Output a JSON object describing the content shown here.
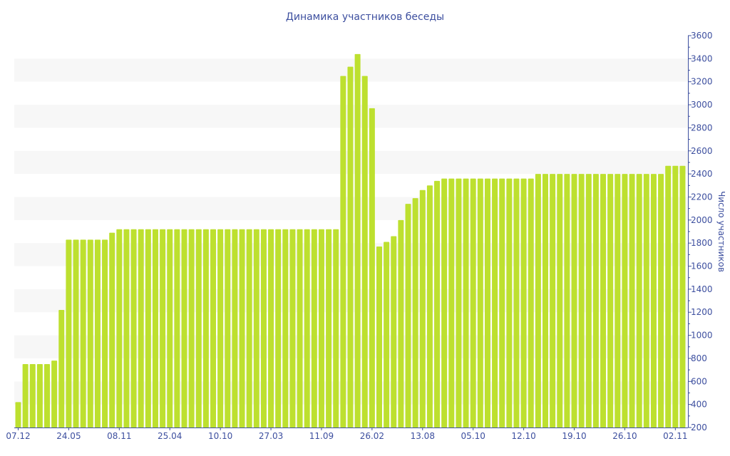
{
  "chart_data": {
    "type": "bar",
    "title": "Динамика участников беседы",
    "xlabel": "",
    "ylabel": "Число участников",
    "ylim": [
      200,
      3600
    ],
    "y_ticks": [
      200,
      400,
      600,
      800,
      1000,
      1200,
      1400,
      1600,
      1800,
      2000,
      2200,
      2400,
      2600,
      2800,
      3000,
      3200,
      3400,
      3600
    ],
    "x_tick_every": 7,
    "x_tick_labels": [
      "07.12",
      "24.05",
      "08.11",
      "25.04",
      "10.10",
      "27.03",
      "11.09",
      "26.02",
      "13.08",
      "05.10",
      "12.10",
      "19.10",
      "26.10",
      "02.11"
    ],
    "values": [
      420,
      750,
      750,
      750,
      750,
      780,
      1220,
      1830,
      1830,
      1830,
      1830,
      1830,
      1830,
      1890,
      1920,
      1920,
      1920,
      1920,
      1920,
      1920,
      1920,
      1920,
      1920,
      1920,
      1920,
      1920,
      1920,
      1920,
      1920,
      1920,
      1920,
      1920,
      1920,
      1920,
      1920,
      1920,
      1920,
      1920,
      1920,
      1920,
      1920,
      1920,
      1920,
      1920,
      1920,
      3250,
      3330,
      3440,
      3250,
      2970,
      1770,
      1810,
      1860,
      2000,
      2140,
      2190,
      2260,
      2300,
      2340,
      2360,
      2360,
      2360,
      2360,
      2360,
      2360,
      2360,
      2360,
      2360,
      2360,
      2360,
      2360,
      2360,
      2400,
      2400,
      2400,
      2400,
      2400,
      2400,
      2400,
      2400,
      2400,
      2400,
      2400,
      2400,
      2400,
      2400,
      2400,
      2400,
      2400,
      2400,
      2470,
      2470,
      2470
    ],
    "grid": "alternating horizontal bands",
    "y_axis_position": "right",
    "colors": {
      "bar": "#bde02f",
      "axis": "#3d4f9f",
      "band": "#f7f7f7"
    }
  }
}
